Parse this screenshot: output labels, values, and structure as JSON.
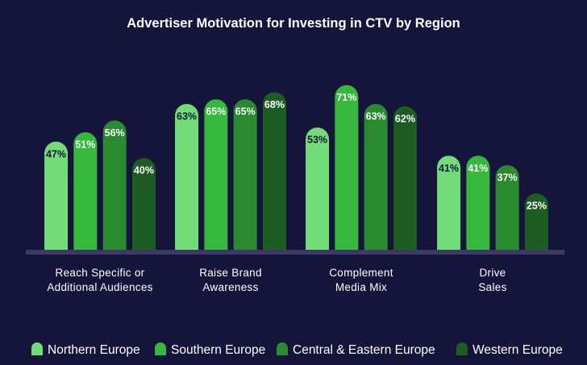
{
  "chart_data": {
    "type": "bar",
    "title": "Advertiser Motivation for Investing in CTV by Region",
    "categories": [
      [
        "Reach Specific or",
        "Additional Audiences"
      ],
      [
        "Raise Brand",
        "Awareness"
      ],
      [
        "Complement",
        "Media Mix"
      ],
      [
        "Drive",
        "Sales"
      ]
    ],
    "series": [
      {
        "name": "Northern Europe",
        "values": [
          47,
          63,
          53,
          41
        ],
        "color": "#72dd78"
      },
      {
        "name": "Southern Europe",
        "values": [
          51,
          65,
          71,
          41
        ],
        "color": "#35b83b"
      },
      {
        "name": "Central & Eastern Europe",
        "values": [
          56,
          65,
          63,
          37
        ],
        "color": "#2a8a2f"
      },
      {
        "name": "Western Europe",
        "values": [
          40,
          68,
          62,
          25
        ],
        "color": "#1d5c22"
      }
    ],
    "value_suffix": "%",
    "ylim": [
      0,
      80
    ],
    "grid": false,
    "legend_position": "bottom",
    "background": "#15143a",
    "baseline_color": "#3a3a62"
  }
}
